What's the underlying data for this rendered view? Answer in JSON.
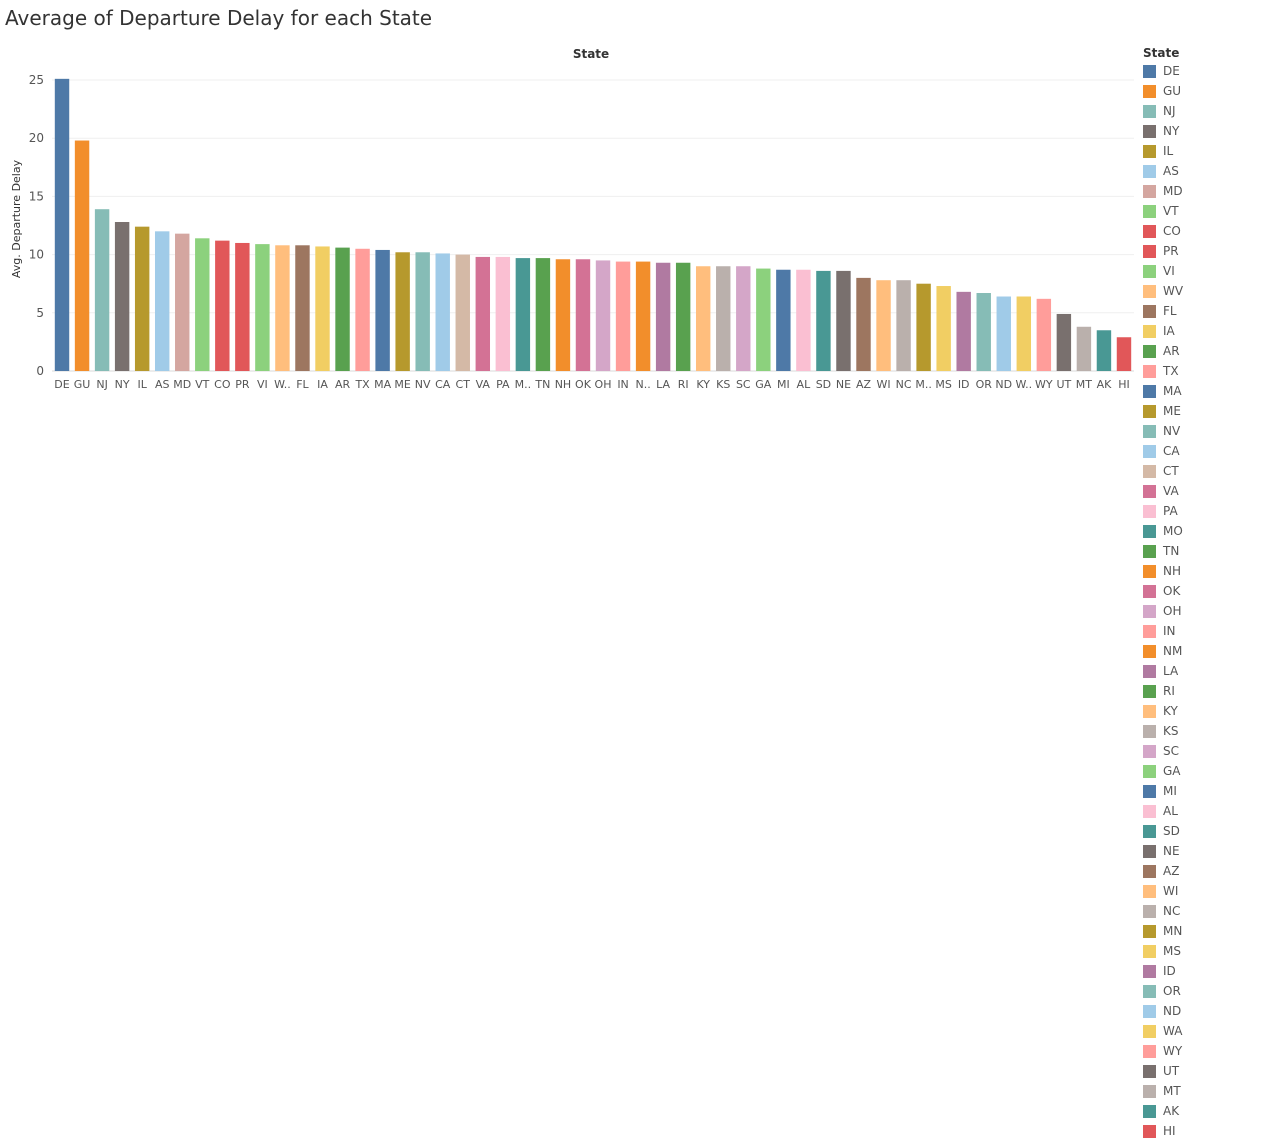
{
  "chart_data": {
    "type": "bar",
    "title": "Average of Departure Delay for each State",
    "column_header": "State",
    "ylabel": "Avg. Departure Delay",
    "ylim": [
      0,
      25
    ],
    "yticks": [
      0,
      5,
      10,
      15,
      20,
      25
    ],
    "grid": true,
    "legend_title": "State",
    "legend_position": "right",
    "categories": [
      "DE",
      "GU",
      "NJ",
      "NY",
      "IL",
      "AS",
      "MD",
      "VT",
      "CO",
      "PR",
      "VI",
      "WV",
      "FL",
      "IA",
      "AR",
      "TX",
      "MA",
      "ME",
      "NV",
      "CA",
      "CT",
      "VA",
      "PA",
      "MO",
      "TN",
      "NH",
      "OK",
      "OH",
      "IN",
      "NM",
      "LA",
      "RI",
      "KY",
      "KS",
      "SC",
      "GA",
      "MI",
      "AL",
      "SD",
      "NE",
      "AZ",
      "WI",
      "NC",
      "MN",
      "MS",
      "ID",
      "OR",
      "ND",
      "WA",
      "WY",
      "UT",
      "MT",
      "AK",
      "HI"
    ],
    "tick_labels": [
      "DE",
      "GU",
      "NJ",
      "NY",
      "IL",
      "AS",
      "MD",
      "VT",
      "CO",
      "PR",
      "VI",
      "W..",
      "FL",
      "IA",
      "AR",
      "TX",
      "MA",
      "ME",
      "NV",
      "CA",
      "CT",
      "VA",
      "PA",
      "M..",
      "TN",
      "NH",
      "OK",
      "OH",
      "IN",
      "N..",
      "LA",
      "RI",
      "KY",
      "KS",
      "SC",
      "GA",
      "MI",
      "AL",
      "SD",
      "NE",
      "AZ",
      "WI",
      "NC",
      "M..",
      "MS",
      "ID",
      "OR",
      "ND",
      "W..",
      "WY",
      "UT",
      "MT",
      "AK",
      "HI"
    ],
    "values": [
      25.1,
      19.8,
      13.9,
      12.8,
      12.4,
      12.0,
      11.8,
      11.4,
      11.2,
      11.0,
      10.9,
      10.8,
      10.8,
      10.7,
      10.6,
      10.5,
      10.4,
      10.2,
      10.2,
      10.1,
      10.0,
      9.8,
      9.8,
      9.7,
      9.7,
      9.6,
      9.6,
      9.5,
      9.4,
      9.4,
      9.3,
      9.3,
      9.0,
      9.0,
      9.0,
      8.8,
      8.7,
      8.7,
      8.6,
      8.6,
      8.0,
      7.8,
      7.8,
      7.5,
      7.3,
      6.8,
      6.7,
      6.4,
      6.4,
      6.2,
      4.9,
      3.8,
      3.5,
      2.9
    ],
    "colors": [
      "#4e79a7",
      "#f28e2b",
      "#86bcb6",
      "#79706e",
      "#b6992d",
      "#a0cbe8",
      "#d4a6a0",
      "#8cd17d",
      "#e15759",
      "#e15759",
      "#8cd17d",
      "#ffbe7d",
      "#9d7660",
      "#f1ce63",
      "#59a14f",
      "#ff9d9a",
      "#4e79a7",
      "#b6992d",
      "#86bcb6",
      "#a0cbe8",
      "#d4b9a6",
      "#d37295",
      "#fabfd2",
      "#499894",
      "#59a14f",
      "#f28e2b",
      "#d37295",
      "#d4a6c8",
      "#ff9d9a",
      "#f28e2b",
      "#b07aa1",
      "#59a14f",
      "#ffbe7d",
      "#bab0ac",
      "#d4a6c8",
      "#8cd17d",
      "#4e79a7",
      "#fabfd2",
      "#499894",
      "#79706e",
      "#9d7660",
      "#ffbe7d",
      "#bab0ac",
      "#b6992d",
      "#f1ce63",
      "#b07aa1",
      "#86bcb6",
      "#a0cbe8",
      "#f1ce63",
      "#ff9d9a",
      "#79706e",
      "#bab0ac",
      "#499894",
      "#e15759"
    ]
  }
}
